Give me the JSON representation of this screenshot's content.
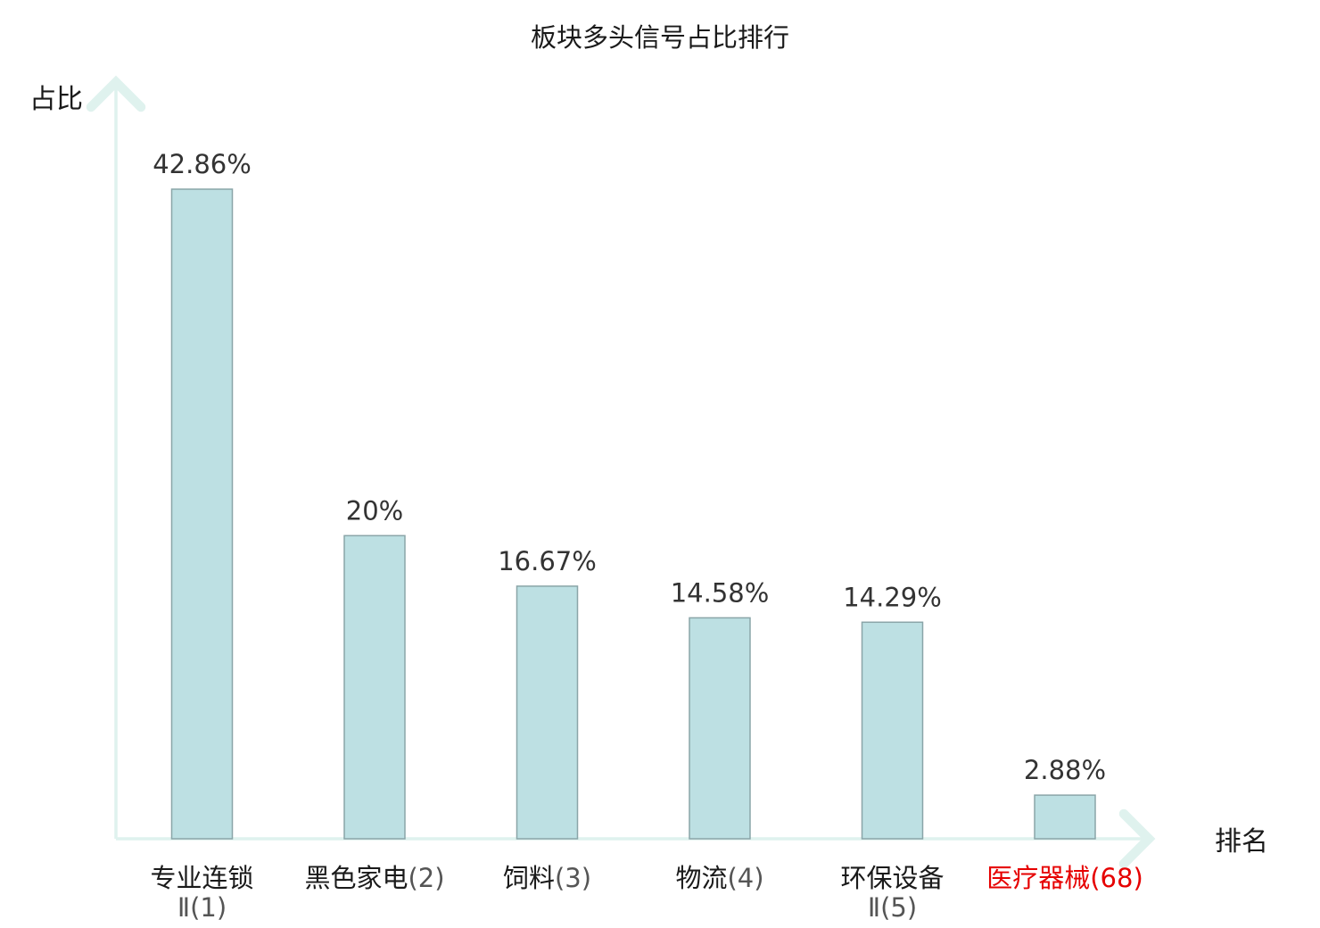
{
  "chart_data": {
    "type": "bar",
    "title": "板块多头信号占比排行",
    "ylabel": "占比",
    "xlabel": "排名",
    "ylim": [
      0,
      52
    ],
    "grid": false,
    "legend": "none",
    "categories": [
      {
        "lines": [
          {
            "name": "专业连锁",
            "rank": ""
          },
          {
            "name": "",
            "rank": "Ⅱ(1)"
          }
        ],
        "highlight": false
      },
      {
        "lines": [
          {
            "name": "黑色家电",
            "rank": "(2)"
          }
        ],
        "highlight": false
      },
      {
        "lines": [
          {
            "name": "饲料",
            "rank": "(3)"
          }
        ],
        "highlight": false
      },
      {
        "lines": [
          {
            "name": "物流",
            "rank": "(4)"
          }
        ],
        "highlight": false
      },
      {
        "lines": [
          {
            "name": "环保设备",
            "rank": ""
          },
          {
            "name": "",
            "rank": "Ⅱ(5)"
          }
        ],
        "highlight": false
      },
      {
        "lines": [
          {
            "name": "医疗器械",
            "rank": "(68)"
          }
        ],
        "highlight": true
      }
    ],
    "values": [
      42.86,
      20,
      16.67,
      14.58,
      14.29,
      2.88
    ],
    "value_labels": [
      "42.86%",
      "20%",
      "16.67%",
      "14.58%",
      "14.29%",
      "2.88%"
    ],
    "colors": {
      "bar_fill": "#bde0e3",
      "bar_stroke": "#8aa5a8",
      "axis": "#dff2ee",
      "name_text": "#1a1a1a",
      "rank_text": "#555555",
      "highlight_text": "#e60000"
    }
  }
}
